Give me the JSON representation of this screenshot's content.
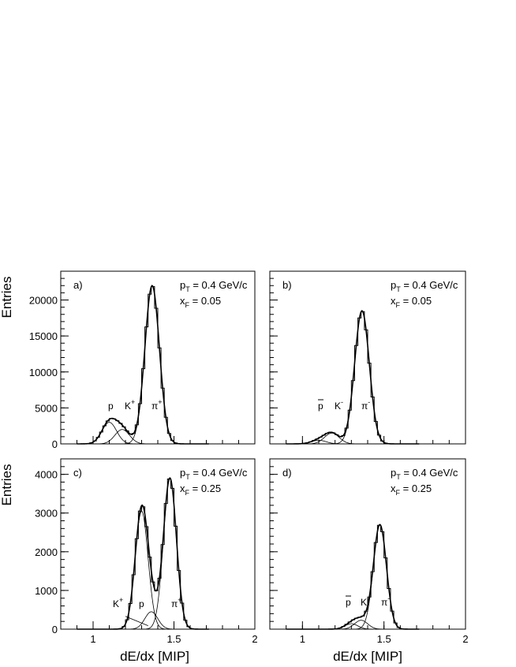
{
  "y_axis_title": "Entries",
  "x_axis_title": "dE/dx [MIP]",
  "chart_data": [
    {
      "id": "a",
      "type": "histogram",
      "panel_label": "a)",
      "info": {
        "pt_symbol": "p",
        "pt_sub": "T",
        "pt_text": " = 0.4 GeV/c",
        "xf_symbol": "x",
        "xf_sub": "F",
        "xf_text": " = 0.05"
      },
      "xlim": [
        0.8,
        2.0
      ],
      "ylim": [
        0,
        24000
      ],
      "x_ticks": [
        1,
        1.5,
        2
      ],
      "x_tick_labels": [
        "",
        "",
        ""
      ],
      "y_ticks": [
        0,
        5000,
        10000,
        15000,
        20000
      ],
      "y_tick_labels": [
        "0",
        "5000",
        "10000",
        "15000",
        "20000"
      ],
      "particles": [
        {
          "label": "p",
          "sup": "",
          "bar": false,
          "mean": 1.1,
          "sigma": 0.045,
          "amp": 3000
        },
        {
          "label": "K",
          "sup": "+",
          "bar": false,
          "mean": 1.18,
          "sigma": 0.045,
          "amp": 2000
        },
        {
          "label": "π",
          "sup": "+",
          "bar": false,
          "mean": 1.365,
          "sigma": 0.045,
          "amp": 22000
        }
      ],
      "annotation_markers": []
    },
    {
      "id": "b",
      "type": "histogram",
      "panel_label": "b)",
      "info": {
        "pt_symbol": "p",
        "pt_sub": "T",
        "pt_text": " = 0.4 GeV/c",
        "xf_symbol": "x",
        "xf_sub": "F",
        "xf_text": " = 0.05"
      },
      "xlim": [
        0.8,
        2.0
      ],
      "ylim": [
        0,
        24000
      ],
      "x_ticks": [
        1,
        1.5,
        2
      ],
      "x_tick_labels": [
        "",
        "",
        ""
      ],
      "y_ticks": [
        0,
        5000,
        10000,
        15000,
        20000
      ],
      "y_tick_labels": [
        "",
        "",
        "",
        "",
        ""
      ],
      "particles": [
        {
          "label": "p",
          "sup": "",
          "bar": true,
          "mean": 1.1,
          "sigma": 0.045,
          "amp": 500
        },
        {
          "label": "K",
          "sup": "-",
          "bar": false,
          "mean": 1.18,
          "sigma": 0.045,
          "amp": 1500
        },
        {
          "label": "π",
          "sup": "-",
          "bar": false,
          "mean": 1.365,
          "sigma": 0.045,
          "amp": 18500
        }
      ],
      "annotation_markers": []
    },
    {
      "id": "c",
      "type": "histogram",
      "panel_label": "c)",
      "info": {
        "pt_symbol": "p",
        "pt_sub": "T",
        "pt_text": " = 0.4 GeV/c",
        "xf_symbol": "x",
        "xf_sub": "F",
        "xf_text": " = 0.25"
      },
      "xlim": [
        0.8,
        2.0
      ],
      "ylim": [
        0,
        4400
      ],
      "x_ticks": [
        1,
        1.5,
        2
      ],
      "x_tick_labels": [
        "1",
        "1.5",
        "2"
      ],
      "y_ticks": [
        0,
        1000,
        2000,
        3000,
        4000
      ],
      "y_tick_labels": [
        "0",
        "1000",
        "2000",
        "3000",
        "4000"
      ],
      "particles": [
        {
          "label": "K",
          "sup": "+",
          "bar": false,
          "mean": 1.36,
          "sigma": 0.04,
          "amp": 450
        },
        {
          "label": "p",
          "sup": "",
          "bar": false,
          "mean": 1.3,
          "sigma": 0.04,
          "amp": 3050
        },
        {
          "label": "π",
          "sup": "+",
          "bar": false,
          "mean": 1.475,
          "sigma": 0.04,
          "amp": 3900
        }
      ],
      "annotation_markers": [
        {
          "from": [
            1.2,
            330
          ],
          "to": [
            1.34,
            90
          ]
        }
      ]
    },
    {
      "id": "d",
      "type": "histogram",
      "panel_label": "d)",
      "info": {
        "pt_symbol": "p",
        "pt_sub": "T",
        "pt_text": " = 0.4 GeV/c",
        "xf_symbol": "x",
        "xf_sub": "F",
        "xf_text": " = 0.25"
      },
      "xlim": [
        0.8,
        2.0
      ],
      "ylim": [
        0,
        4400
      ],
      "x_ticks": [
        1,
        1.5,
        2
      ],
      "x_tick_labels": [
        "1",
        "1.5",
        "2"
      ],
      "y_ticks": [
        0,
        1000,
        2000,
        3000,
        4000
      ],
      "y_tick_labels": [
        "",
        "",
        "",
        "",
        ""
      ],
      "particles": [
        {
          "label": "p",
          "sup": "",
          "bar": true,
          "mean": 1.3,
          "sigma": 0.04,
          "amp": 140
        },
        {
          "label": "K",
          "sup": "-",
          "bar": false,
          "mean": 1.36,
          "sigma": 0.04,
          "amp": 230
        },
        {
          "label": "π",
          "sup": "-",
          "bar": false,
          "mean": 1.475,
          "sigma": 0.04,
          "amp": 2700
        }
      ],
      "annotation_markers": []
    }
  ]
}
